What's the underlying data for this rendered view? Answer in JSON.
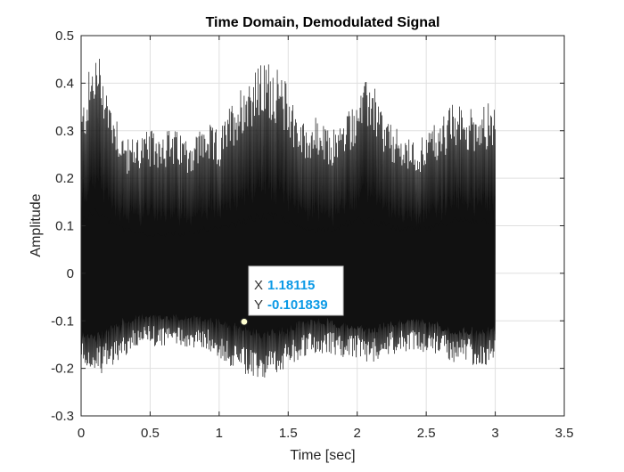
{
  "chart_data": {
    "type": "line",
    "title": "Time Domain, Demodulated Signal",
    "xlabel": "Time [sec]",
    "ylabel": "Amplitude",
    "xlim": [
      0,
      3.5
    ],
    "ylim": [
      -0.3,
      0.5
    ],
    "x_ticks": [
      0,
      0.5,
      1,
      1.5,
      2,
      2.5,
      3,
      3.5
    ],
    "x_tick_labels": [
      "0",
      "0.5",
      "1",
      "1.5",
      "2",
      "2.5",
      "3",
      "3.5"
    ],
    "y_ticks": [
      -0.3,
      -0.2,
      -0.1,
      0,
      0.1,
      0.2,
      0.3,
      0.4,
      0.5
    ],
    "y_tick_labels": [
      "-0.3",
      "-0.2",
      "-0.1",
      "0",
      "0.1",
      "0.2",
      "0.3",
      "0.4",
      "0.5"
    ],
    "grid": true,
    "series": [
      {
        "name": "Demodulated Signal",
        "color": "#111111",
        "x_range": [
          0,
          3.0
        ],
        "envelope": {
          "t": [
            0,
            0.05,
            0.1,
            0.15,
            0.2,
            0.25,
            0.3,
            0.35,
            0.4,
            0.5,
            0.6,
            0.7,
            0.8,
            0.9,
            1.0,
            1.1,
            1.2,
            1.3,
            1.35,
            1.4,
            1.5,
            1.6,
            1.7,
            1.8,
            1.9,
            2.0,
            2.1,
            2.2,
            2.3,
            2.4,
            2.5,
            2.6,
            2.7,
            2.8,
            2.9,
            3.0
          ],
          "upper": [
            0.34,
            0.42,
            0.47,
            0.46,
            0.38,
            0.35,
            0.3,
            0.28,
            0.3,
            0.3,
            0.31,
            0.3,
            0.29,
            0.32,
            0.3,
            0.37,
            0.42,
            0.44,
            0.45,
            0.44,
            0.4,
            0.32,
            0.33,
            0.3,
            0.33,
            0.38,
            0.42,
            0.33,
            0.3,
            0.28,
            0.3,
            0.33,
            0.36,
            0.35,
            0.36,
            0.36
          ],
          "lower": [
            -0.19,
            -0.2,
            -0.22,
            -0.21,
            -0.2,
            -0.19,
            -0.18,
            -0.17,
            -0.16,
            -0.15,
            -0.16,
            -0.15,
            -0.16,
            -0.16,
            -0.18,
            -0.2,
            -0.22,
            -0.23,
            -0.22,
            -0.21,
            -0.2,
            -0.18,
            -0.17,
            -0.17,
            -0.18,
            -0.18,
            -0.19,
            -0.17,
            -0.17,
            -0.16,
            -0.17,
            -0.17,
            -0.19,
            -0.19,
            -0.2,
            -0.19
          ],
          "core_upper": [
            0.12,
            0.13,
            0.14,
            0.13,
            0.12,
            0.11,
            0.1,
            0.1,
            0.09,
            0.09,
            0.09,
            0.09,
            0.09,
            0.1,
            0.1,
            0.11,
            0.12,
            0.13,
            0.13,
            0.13,
            0.12,
            0.1,
            0.1,
            0.1,
            0.11,
            0.12,
            0.12,
            0.11,
            0.1,
            0.1,
            0.1,
            0.11,
            0.12,
            0.12,
            0.12,
            0.12
          ],
          "core_lower": [
            -0.13,
            -0.14,
            -0.15,
            -0.14,
            -0.13,
            -0.12,
            -0.11,
            -0.11,
            -0.1,
            -0.1,
            -0.1,
            -0.1,
            -0.1,
            -0.11,
            -0.11,
            -0.12,
            -0.13,
            -0.14,
            -0.14,
            -0.13,
            -0.13,
            -0.11,
            -0.11,
            -0.11,
            -0.12,
            -0.12,
            -0.13,
            -0.12,
            -0.11,
            -0.11,
            -0.11,
            -0.12,
            -0.13,
            -0.13,
            -0.13,
            -0.13
          ]
        }
      }
    ],
    "datatip": {
      "x_label": "X",
      "y_label": "Y",
      "x_value": "1.18115",
      "y_value": "-0.101839",
      "point": {
        "x": 1.18115,
        "y": -0.101839
      }
    }
  },
  "colors": {
    "trace": "#111111",
    "datatip_value": "#0c9ae6",
    "marker_fill": "#ffffd0"
  }
}
